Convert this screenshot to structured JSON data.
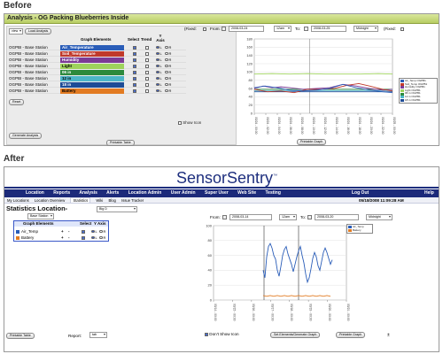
{
  "before": {
    "heading": "Before",
    "window_title": "Analysis - OG Packing Blueberries Inside",
    "toolbar": {
      "select": "view",
      "load_button": "Load Analysis"
    },
    "graph_header": {
      "fixed_label1": "(Fixed:",
      "from_label": "From:",
      "from_date": "2008-03-24",
      "from_time": "12am",
      "to_label": "To:",
      "to_date": "2008-03-25",
      "to_time": "Midnight",
      "fixed_label2": "(Fixed:"
    },
    "table": {
      "headers": [
        "Graph Elements",
        "Select",
        "Trend",
        "Y Axis"
      ],
      "rows": [
        {
          "station": "OGPBI - Base Station",
          "element": "Air_Temperature",
          "color": "#2a5db8",
          "text": "#ffffff"
        },
        {
          "station": "OGPBI - Base Station",
          "element": "Soil_Temperature",
          "color": "#c0392b",
          "text": "#ffffff"
        },
        {
          "station": "OGPBI - Base Station",
          "element": "Humidity",
          "color": "#7c3b96",
          "text": "#ffffff"
        },
        {
          "station": "OGPBI - Base Station",
          "element": "Light",
          "color": "#9ed35c",
          "text": "#000000"
        },
        {
          "station": "OGPBI - Base Station",
          "element": "06 in",
          "color": "#2d8a3e",
          "text": "#ffffff"
        },
        {
          "station": "OGPBI - Base Station",
          "element": "12 in",
          "color": "#4db6c9",
          "text": "#000000"
        },
        {
          "station": "OGPBI - Base Station",
          "element": "18 in",
          "color": "#1e4c96",
          "text": "#ffffff"
        },
        {
          "station": "OGPBI - Base Station",
          "element": "Battery",
          "color": "#e27b22",
          "text": "#000000"
        }
      ],
      "axis_left": "L",
      "axis_right": "R",
      "reset_button": "Reset"
    },
    "generate_button": "Generate Analysis",
    "printable_table_button": "Printable Table",
    "show_icon_label": "Show Icon",
    "printable_graph_button": "Printable Graph",
    "chart_yticks": [
      "180",
      "160",
      "140",
      "120",
      "100",
      "80",
      "60",
      "40",
      "20",
      "0"
    ],
    "chart_xticks": [
      "03/24 - 00:00",
      "03/24 - 02:00",
      "03/24 - 04:00",
      "03/24 - 06:00",
      "03/24 - 08:00",
      "03/24 - 10:00",
      "03/24 - 12:00",
      "03/24 - 14:00",
      "03/24 - 16:00",
      "03/24 - 18:00",
      "03/24 - 20:00",
      "03/24 - 22:00",
      "03/25 - 00:00"
    ],
    "legend": [
      {
        "name": "Air_Temp OGPB1",
        "color": "#2a5db8"
      },
      {
        "name": "Soil_Temp OGPB1",
        "color": "#c0392b"
      },
      {
        "name": "Humidity OGPB1",
        "color": "#7c3b96"
      },
      {
        "name": "Light OGPB1",
        "color": "#9ed35c"
      },
      {
        "name": "06 in OGPB1",
        "color": "#2d8a3e"
      },
      {
        "name": "12 in OGPB1",
        "color": "#4db6c9"
      },
      {
        "name": "18 in OGPB1",
        "color": "#1e4c96"
      }
    ]
  },
  "after": {
    "heading": "After",
    "brand": "SensorSentry",
    "brand_tm": "™",
    "nav": [
      "Location",
      "Reports",
      "Analysis",
      "Alerts",
      "Location Admin",
      "User Admin",
      "Super User",
      "Web Site",
      "Testing"
    ],
    "logout": "Log Out",
    "help": "Help",
    "subnav": [
      "My Locations",
      "Location Overview",
      "Statistics",
      "Wiki",
      "Blog",
      "Issue Tracker"
    ],
    "datetime": "05/18/2008 11:09:28 AM",
    "stats_title": "Statistics Location-",
    "location_select": "Big D",
    "station_select": "Base Station",
    "table_headers": [
      "Graph Elements",
      "Select",
      "Y Axis"
    ],
    "rows": [
      {
        "element": "Air_Temp",
        "color": "#2a5db8"
      },
      {
        "element": "Battery",
        "color": "#e27b22"
      }
    ],
    "axis_left": "L",
    "axis_right": "R",
    "from_label": "From:",
    "from_date": "2008-03-14",
    "from_time": "12am",
    "to_label": "To:",
    "to_date": "2008-03-20",
    "to_time": "Midnight",
    "chart_yticks": [
      "100",
      "80",
      "60",
      "40",
      "20",
      "0"
    ],
    "chart_xticks": [
      "03/14 - 00:00",
      "03/15 - 00:00",
      "03/16 - 00:00",
      "03/17 - 00:00",
      "03/18 - 00:00",
      "03/19 - 00:00",
      "03/20 - 00:00",
      "03/21 - 00:00"
    ],
    "legend": [
      {
        "name": "Air_Temp",
        "color": "#2a5db8"
      },
      {
        "name": "Battery",
        "color": "#e27b22"
      }
    ],
    "printable_table_button": "Printable Table",
    "report_label": "Report:",
    "report_select": "tab",
    "dont_show_icon_label": "Don't Show Icon",
    "set_elements_button": "Set Elements/Generate Graph",
    "printable_graph_button": "Printable Graph",
    "ascii_sign": "±"
  }
}
